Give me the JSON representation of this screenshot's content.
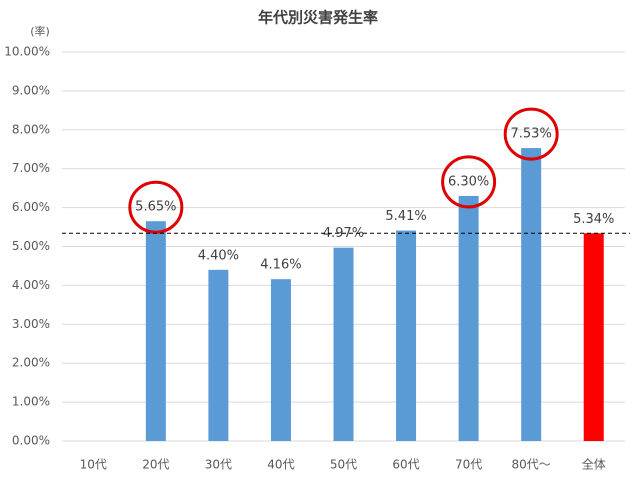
{
  "chart_data": {
    "type": "bar",
    "title": "年代別災害発生率",
    "y_axis_label": "(率)",
    "categories": [
      "10代",
      "20代",
      "30代",
      "40代",
      "50代",
      "60代",
      "70代",
      "80代〜",
      "全体"
    ],
    "values": [
      null,
      5.65,
      4.4,
      4.16,
      4.97,
      5.41,
      6.3,
      7.53,
      5.34
    ],
    "value_labels": [
      null,
      "5.65%",
      "4.40%",
      "4.16%",
      "4.97%",
      "5.41%",
      "6.30%",
      "7.53%",
      "5.34%"
    ],
    "colors": [
      "#5b9bd5",
      "#5b9bd5",
      "#5b9bd5",
      "#5b9bd5",
      "#5b9bd5",
      "#5b9bd5",
      "#5b9bd5",
      "#5b9bd5",
      "#ff0000"
    ],
    "ylim": [
      0,
      10
    ],
    "yticks": [
      {
        "value": 0,
        "label": "0.00%"
      },
      {
        "value": 1,
        "label": "1.00%"
      },
      {
        "value": 2,
        "label": "2.00%"
      },
      {
        "value": 3,
        "label": "3.00%"
      },
      {
        "value": 4,
        "label": "4.00%"
      },
      {
        "value": 5,
        "label": "5.00%"
      },
      {
        "value": 6,
        "label": "6.00%"
      },
      {
        "value": 7,
        "label": "7.00%"
      },
      {
        "value": 8,
        "label": "8.00%"
      },
      {
        "value": 9,
        "label": "9.00%"
      },
      {
        "value": 10,
        "label": "10.00%"
      }
    ],
    "grid": true,
    "reference_line": 5.34,
    "highlighted": [
      1,
      6,
      7
    ]
  }
}
